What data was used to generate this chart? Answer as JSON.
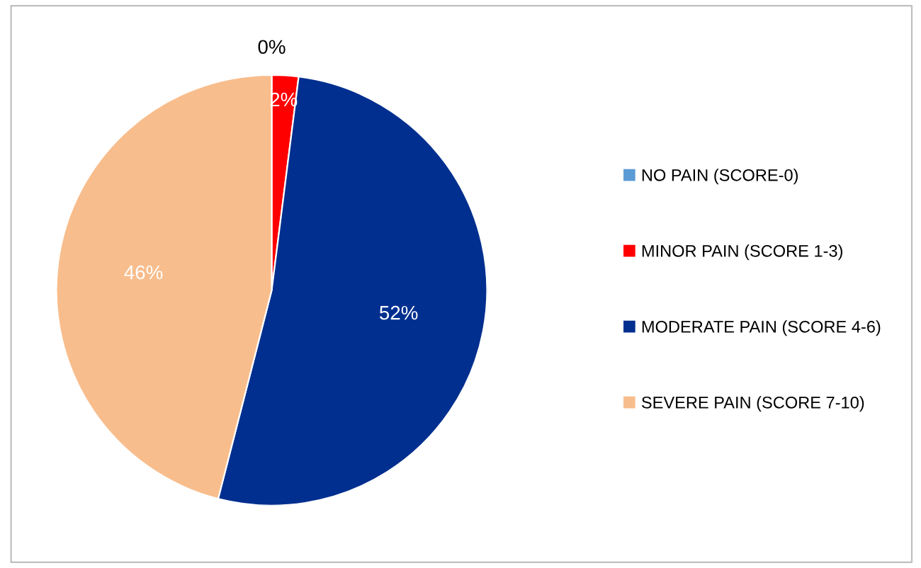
{
  "chart_data": {
    "type": "pie",
    "categories": [
      "NO PAIN (SCORE-0)",
      "MINOR PAIN (SCORE 1-3)",
      "MODERATE PAIN (SCORE 4-6)",
      "SEVERE PAIN (SCORE 7-10)"
    ],
    "values": [
      0,
      2,
      52,
      46
    ],
    "colors": [
      "#5b9bd5",
      "#ff0000",
      "#002f8f",
      "#f8bd8c"
    ],
    "value_labels": [
      "0%",
      "2%",
      "52%",
      "46%"
    ],
    "legend": "right"
  }
}
